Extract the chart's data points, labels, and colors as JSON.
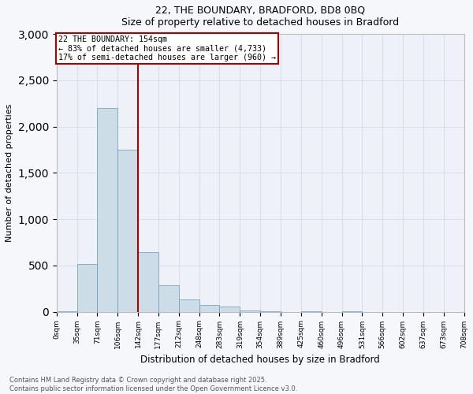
{
  "title1": "22, THE BOUNDARY, BRADFORD, BD8 0BQ",
  "title2": "Size of property relative to detached houses in Bradford",
  "xlabel": "Distribution of detached houses by size in Bradford",
  "ylabel": "Number of detached properties",
  "bar_values": [
    5,
    520,
    2200,
    1750,
    640,
    290,
    130,
    75,
    55,
    15,
    5,
    0,
    5,
    0,
    5,
    0,
    0,
    0,
    0,
    0
  ],
  "bin_labels": [
    "0sqm",
    "35sqm",
    "71sqm",
    "106sqm",
    "142sqm",
    "177sqm",
    "212sqm",
    "248sqm",
    "283sqm",
    "319sqm",
    "354sqm",
    "389sqm",
    "425sqm",
    "460sqm",
    "496sqm",
    "531sqm",
    "566sqm",
    "602sqm",
    "637sqm",
    "673sqm",
    "708sqm"
  ],
  "bar_color": "#ccdde8",
  "bar_edge_color": "#6699bb",
  "vline_bin_index": 4,
  "vline_color": "#aa0000",
  "annotation_box_color": "#aa0000",
  "annotation_line1": "22 THE BOUNDARY: 154sqm",
  "annotation_line2": "← 83% of detached houses are smaller (4,733)",
  "annotation_line3": "17% of semi-detached houses are larger (960) →",
  "ylim": [
    0,
    3000
  ],
  "yticks": [
    0,
    500,
    1000,
    1500,
    2000,
    2500,
    3000
  ],
  "grid_color": "#d8dde8",
  "bg_color": "#eef2f8",
  "fig_bg_color": "#f5f7fb",
  "footer1": "Contains HM Land Registry data © Crown copyright and database right 2025.",
  "footer2": "Contains public sector information licensed under the Open Government Licence v3.0."
}
